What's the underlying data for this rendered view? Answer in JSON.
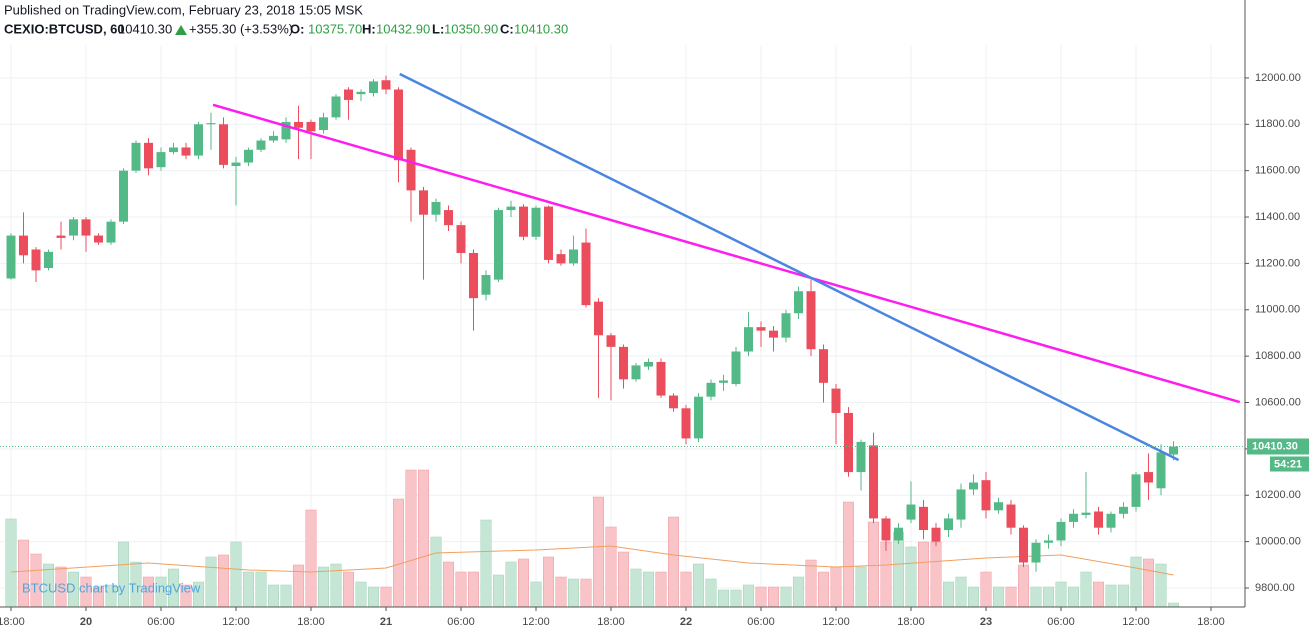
{
  "chart_data": {
    "type": "candlestick",
    "header": {
      "published": "Published on TradingView.com, February 23, 2018 15:05 MSK",
      "symbol": "CEXIO:BTCUSD, 60",
      "price": "10410.30",
      "change": "+355.30 (+3.53%)",
      "o_label": "O:",
      "o": "10375.70",
      "h_label": "H:",
      "h": "10432.90",
      "l_label": "L:",
      "l": "10350.90",
      "c_label": "C:",
      "c": "10410.30"
    },
    "watermark": "BTCUSD chart by TradingView",
    "last_price": {
      "value": 10410.3,
      "label": "10410.30"
    },
    "countdown": "54:21",
    "up_color": "#53b987",
    "down_color": "#eb4d5c",
    "volume_up_color": "#c5e6d5",
    "volume_down_color": "#f8c4c8",
    "open": [
      11135,
      11320,
      11260,
      11180,
      11320,
      11320,
      11390,
      11320,
      11290,
      11380,
      11600,
      11720,
      11615,
      11680,
      11700,
      11665,
      11800,
      11800,
      11620,
      11635,
      11690,
      11730,
      11735,
      11810,
      11810,
      11775,
      11830,
      11950,
      11930,
      11935,
      11990,
      11950,
      11690,
      11515,
      11410,
      11430,
      11365,
      11245,
      11065,
      11130,
      11430,
      11445,
      11315,
      11445,
      11240,
      11200,
      11290,
      11035,
      10890,
      10840,
      10700,
      10755,
      10775,
      10630,
      10575,
      10445,
      10625,
      10685,
      10680,
      10820,
      10925,
      10910,
      10880,
      10985,
      11080,
      10830,
      10660,
      10555,
      10300,
      10415,
      10100,
      10005,
      10095,
      10150,
      10060,
      10050,
      10095,
      10225,
      10265,
      10135,
      10160,
      10060,
      9910,
      9995,
      10005,
      10085,
      10115,
      10130,
      10060,
      10120,
      10150,
      10300,
      10230,
      10375.7
    ],
    "high": [
      11330,
      11420,
      11270,
      11260,
      11380,
      11400,
      11400,
      11330,
      11390,
      11610,
      11730,
      11740,
      11700,
      11720,
      11720,
      11810,
      11850,
      11830,
      11660,
      11700,
      11740,
      11770,
      11830,
      11880,
      11820,
      11850,
      11930,
      11960,
      11950,
      11995,
      12010,
      11960,
      11700,
      11530,
      11480,
      11450,
      11380,
      11260,
      11170,
      11440,
      11470,
      11455,
      11450,
      11450,
      11260,
      11320,
      11350,
      11050,
      10900,
      10850,
      10770,
      10790,
      10790,
      10640,
      10590,
      10640,
      10700,
      10720,
      10840,
      10990,
      10950,
      10930,
      11000,
      11100,
      11130,
      10850,
      10680,
      10580,
      10440,
      10470,
      10110,
      10080,
      10260,
      10180,
      10080,
      10120,
      10250,
      10290,
      10300,
      10190,
      10180,
      10070,
      10010,
      10030,
      10100,
      10140,
      10300,
      10150,
      10130,
      10170,
      10300,
      10380,
      10420,
      10432.9
    ],
    "low": [
      11130,
      11200,
      11120,
      11170,
      11260,
      11300,
      11250,
      11280,
      11280,
      11370,
      11590,
      11580,
      11600,
      11670,
      11650,
      11650,
      11690,
      11610,
      11450,
      11620,
      11680,
      11720,
      11720,
      11650,
      11650,
      11760,
      11820,
      11820,
      11900,
      11920,
      11930,
      11550,
      11380,
      11130,
      11380,
      11340,
      11200,
      10910,
      11040,
      11120,
      11400,
      11300,
      11300,
      11200,
      11190,
      11190,
      11010,
      10620,
      10610,
      10660,
      10690,
      10740,
      10620,
      10560,
      10420,
      10430,
      10610,
      10650,
      10670,
      10800,
      10840,
      10820,
      10860,
      10960,
      10800,
      10600,
      10420,
      10280,
      10220,
      10080,
      9960,
      9990,
      10080,
      10010,
      9980,
      10020,
      10060,
      10200,
      10100,
      10120,
      10030,
      9890,
      9870,
      9970,
      9980,
      10060,
      10100,
      10030,
      10040,
      10100,
      10130,
      10180,
      10200,
      10350.9
    ],
    "close": [
      11320,
      11235,
      11170,
      11250,
      11310,
      11390,
      11320,
      11290,
      11380,
      11600,
      11720,
      11610,
      11680,
      11700,
      11665,
      11800,
      11805,
      11625,
      11635,
      11690,
      11730,
      11750,
      11810,
      11785,
      11770,
      11830,
      11920,
      11905,
      11940,
      11985,
      11950,
      11645,
      11515,
      11410,
      11465,
      11365,
      11245,
      11050,
      11150,
      11430,
      11445,
      11315,
      11440,
      11215,
      11200,
      11260,
      11020,
      10890,
      10840,
      10700,
      10760,
      10775,
      10630,
      10575,
      10445,
      10625,
      10685,
      10695,
      10820,
      10925,
      10910,
      10880,
      10985,
      11080,
      10830,
      10685,
      10555,
      10300,
      10430,
      10100,
      10005,
      10060,
      10160,
      10050,
      10000,
      10100,
      10225,
      10255,
      10135,
      10170,
      10060,
      9910,
      9995,
      10005,
      10085,
      10120,
      10125,
      10060,
      10120,
      10150,
      10290,
      10255,
      10385,
      10410.3
    ],
    "volume": [
      88,
      67,
      53,
      43,
      40,
      35,
      30,
      20,
      22,
      65,
      45,
      30,
      30,
      38,
      22,
      25,
      50,
      52,
      65,
      35,
      35,
      22,
      22,
      42,
      97,
      40,
      43,
      35,
      25,
      20,
      20,
      108,
      137,
      137,
      70,
      45,
      35,
      35,
      87,
      32,
      45,
      48,
      25,
      50,
      30,
      28,
      28,
      110,
      80,
      55,
      38,
      35,
      35,
      90,
      35,
      43,
      28,
      17,
      17,
      22,
      20,
      20,
      20,
      30,
      47,
      35,
      40,
      105,
      40,
      85,
      65,
      75,
      60,
      65,
      65,
      25,
      30,
      20,
      35,
      20,
      20,
      42,
      20,
      20,
      25,
      20,
      35,
      25,
      22,
      22,
      50,
      48,
      43,
      4
    ],
    "volume_ma": {
      "color": "#f0a060",
      "x": [
        0,
        11,
        19,
        24,
        30,
        34,
        42,
        48,
        53,
        59,
        66,
        70,
        78,
        84,
        90,
        93
      ],
      "values": [
        35,
        44,
        37,
        35,
        39,
        54,
        57,
        61,
        52,
        44,
        40,
        42,
        49,
        52,
        39,
        32
      ]
    },
    "trendlines": [
      {
        "color": "#ff1cf0",
        "x": [
          16.16,
          98.3
        ],
        "y": [
          11884,
          10602
        ]
      },
      {
        "color": "#4a86e0",
        "x": [
          31.1,
          93.4
        ],
        "y": [
          12017,
          10352
        ]
      }
    ],
    "xlim": [
      -0.88,
      98.72
    ],
    "ylim": [
      9718,
      12142
    ],
    "xticks": [
      {
        "value": 0,
        "label": "18:00"
      },
      {
        "value": 6,
        "label": "20"
      },
      {
        "value": 12,
        "label": "06:00"
      },
      {
        "value": 18,
        "label": "12:00"
      },
      {
        "value": 24,
        "label": "18:00"
      },
      {
        "value": 30,
        "label": "21"
      },
      {
        "value": 36,
        "label": "06:00"
      },
      {
        "value": 42,
        "label": "12:00"
      },
      {
        "value": 48,
        "label": "18:00"
      },
      {
        "value": 54,
        "label": "22"
      },
      {
        "value": 60,
        "label": "06:00"
      },
      {
        "value": 66,
        "label": "12:00"
      },
      {
        "value": 72,
        "label": "18:00"
      },
      {
        "value": 78,
        "label": "23"
      },
      {
        "value": 84,
        "label": "06:00"
      },
      {
        "value": 90,
        "label": "12:00"
      },
      {
        "value": 96,
        "label": "18:00"
      }
    ],
    "yticks": [
      {
        "value": 9800,
        "label": "9800.00"
      },
      {
        "value": 10000,
        "label": "10000.00"
      },
      {
        "value": 10200,
        "label": "10200.00"
      },
      {
        "value": 10400,
        "label": "10400.00"
      },
      {
        "value": 10600,
        "label": "10600.00"
      },
      {
        "value": 10800,
        "label": "10800.00"
      },
      {
        "value": 11000,
        "label": "11000.00"
      },
      {
        "value": 11200,
        "label": "11200.00"
      },
      {
        "value": 11400,
        "label": "11400.00"
      },
      {
        "value": 11600,
        "label": "11600.00"
      },
      {
        "value": 11800,
        "label": "11800.00"
      },
      {
        "value": 12000,
        "label": "12000.00"
      }
    ],
    "grid": true
  }
}
